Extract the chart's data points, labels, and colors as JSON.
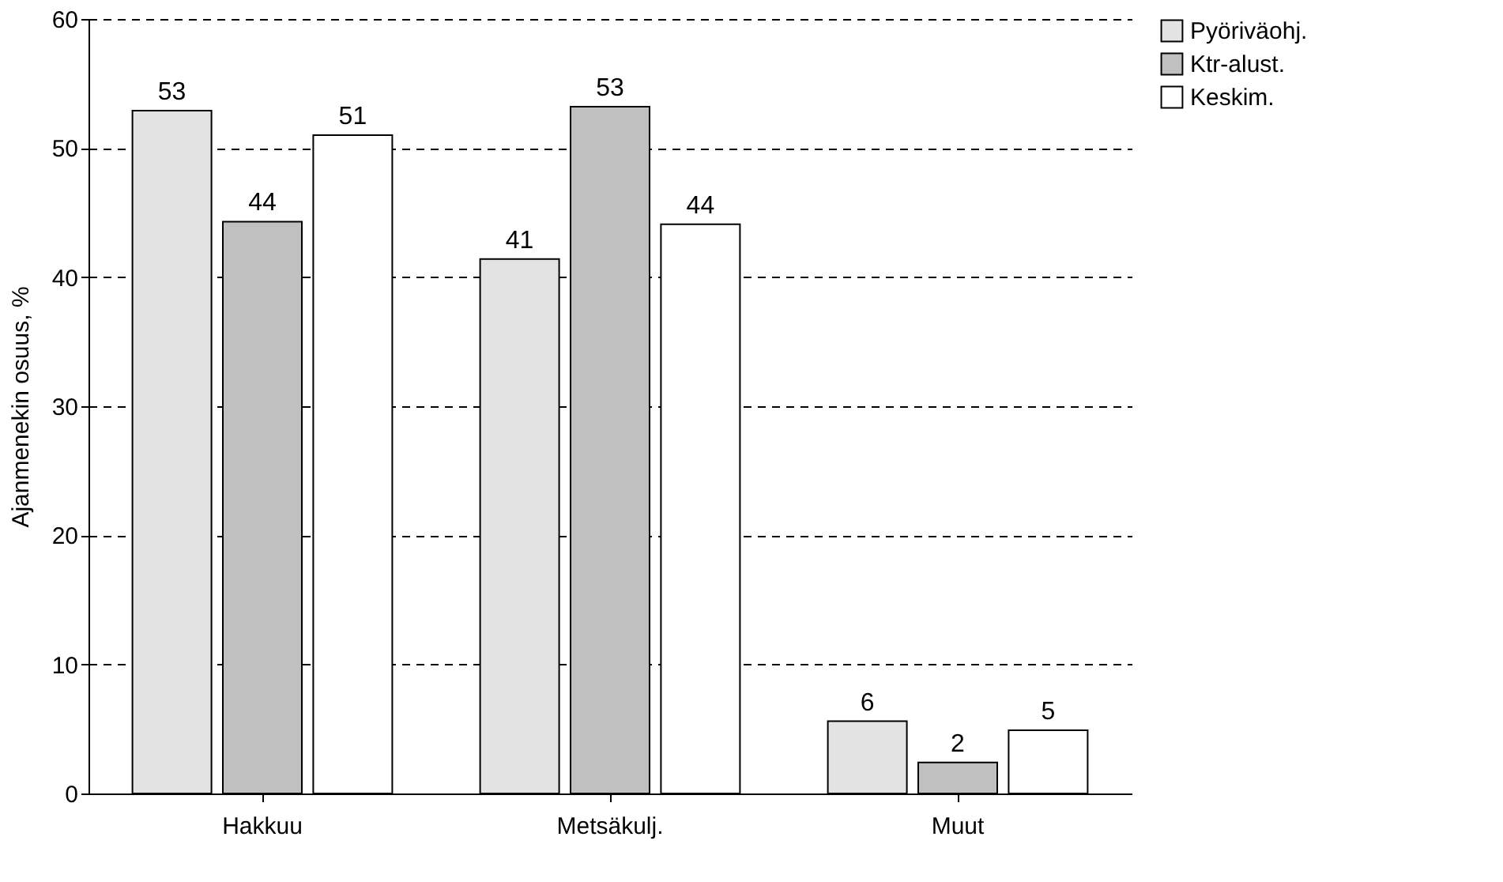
{
  "chart_data": {
    "type": "bar",
    "ylabel": "Ajanmenekin osuus, %",
    "categories": [
      "Hakkuu",
      "Metsäkulj.",
      "Muut"
    ],
    "series": [
      {
        "name": "Pyöriväohj.",
        "color": "#e3e3e3",
        "values": [
          52.9,
          41.4,
          5.6
        ],
        "value_labels": [
          "53",
          "41",
          "6"
        ]
      },
      {
        "name": "Ktr-alust.",
        "color": "#c0c0c0",
        "values": [
          44.3,
          53.2,
          2.4
        ],
        "value_labels": [
          "44",
          "53",
          "2"
        ]
      },
      {
        "name": "Keskim.",
        "color": "#ffffff",
        "values": [
          51.0,
          44.1,
          4.9
        ],
        "value_labels": [
          "51",
          "44",
          "5"
        ]
      }
    ],
    "ylim": [
      0,
      60
    ],
    "yticks": [
      0,
      10,
      20,
      30,
      40,
      50,
      60
    ],
    "grid": "y",
    "legend": "right"
  }
}
